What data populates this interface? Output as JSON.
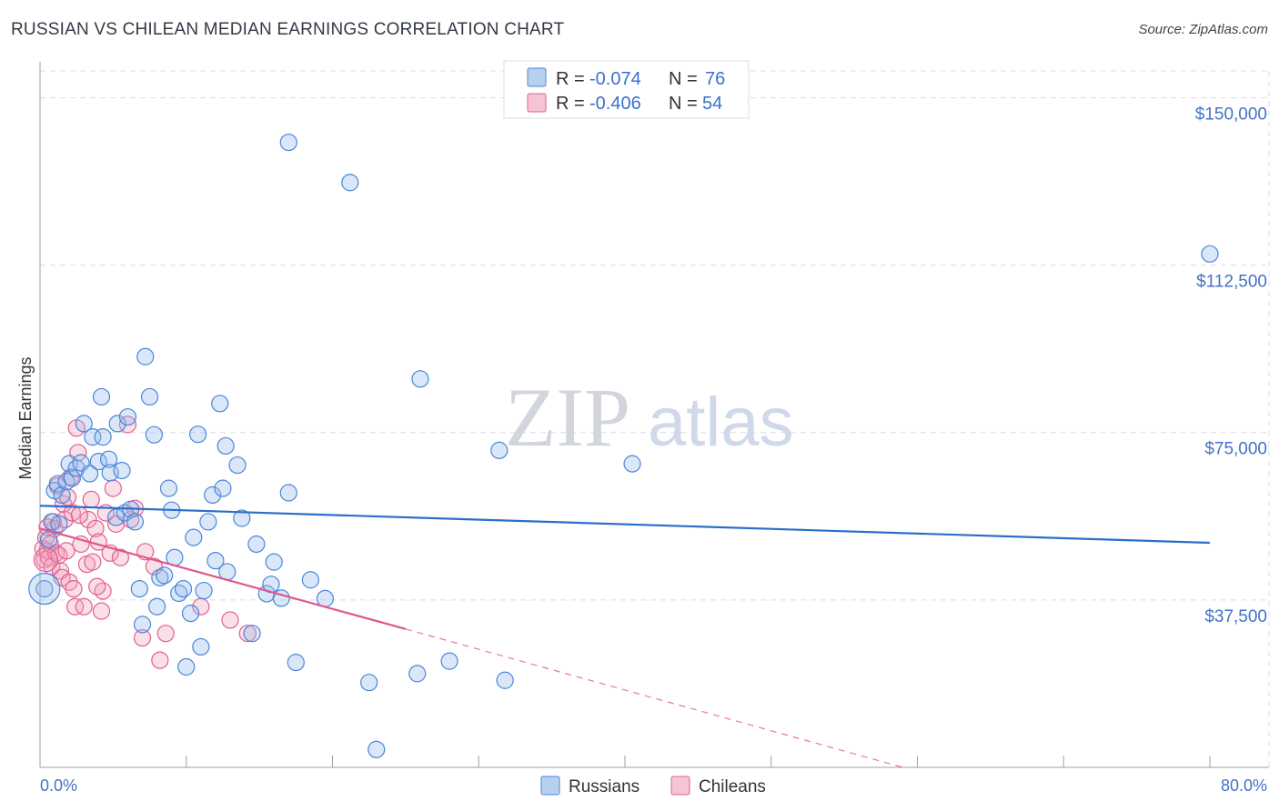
{
  "title": "RUSSIAN VS CHILEAN MEDIAN EARNINGS CORRELATION CHART",
  "source": "Source: ZipAtlas.com",
  "watermark": {
    "zip": "ZIP",
    "atlas": "atlas"
  },
  "colors": {
    "russians": "#4a86d8",
    "russians_fill": "rgba(150,185,235,0.35)",
    "chileans": "#e06090",
    "chileans_fill": "rgba(240,160,190,0.35)",
    "russian_line": "#2a6fc9",
    "chilean_line": "#e0578a",
    "grid": "#d8dce4",
    "tick_text": "#4472c4"
  },
  "legend": {
    "rows": [
      {
        "r_label": "R =",
        "r_value": "-0.074",
        "n_label": "N =",
        "n_value": "76",
        "series": "russians"
      },
      {
        "r_label": "R =",
        "r_value": "-0.406",
        "n_label": "N =",
        "n_value": "54",
        "series": "chileans"
      }
    ]
  },
  "bottom_legend": [
    {
      "label": "Russians",
      "series": "russians"
    },
    {
      "label": "Chileans",
      "series": "chileans"
    }
  ],
  "chart_data": {
    "type": "scatter",
    "title": "RUSSIAN VS CHILEAN MEDIAN EARNINGS CORRELATION CHART",
    "xlabel": "",
    "ylabel": "Median Earnings",
    "xlim": [
      0,
      80
    ],
    "ylim": [
      0,
      156000
    ],
    "x_tick_labels": [
      "0.0%",
      "80.0%"
    ],
    "y_ticks": [
      37500,
      75000,
      112500,
      150000
    ],
    "y_tick_labels": [
      "$37,500",
      "$75,000",
      "$112,500",
      "$150,000"
    ],
    "grid": true,
    "series": [
      {
        "name": "Russians",
        "r": -0.074,
        "n": 76,
        "trend": {
          "x0": 0,
          "y0": 58600,
          "x1": 80,
          "y1": 50300
        },
        "points": [
          [
            0.3,
            40000
          ],
          [
            0.6,
            51000
          ],
          [
            0.8,
            55000
          ],
          [
            1.0,
            62000
          ],
          [
            1.2,
            63500
          ],
          [
            1.3,
            54500
          ],
          [
            1.5,
            61000
          ],
          [
            1.8,
            64000
          ],
          [
            2.0,
            68000
          ],
          [
            2.2,
            64800
          ],
          [
            2.5,
            67000
          ],
          [
            2.8,
            68200
          ],
          [
            3.0,
            77000
          ],
          [
            3.4,
            65800
          ],
          [
            3.6,
            74000
          ],
          [
            4.0,
            68500
          ],
          [
            4.2,
            83000
          ],
          [
            4.3,
            74000
          ],
          [
            4.7,
            69000
          ],
          [
            4.8,
            66000
          ],
          [
            5.2,
            56000
          ],
          [
            5.3,
            77000
          ],
          [
            5.6,
            66500
          ],
          [
            5.8,
            57000
          ],
          [
            6.0,
            78500
          ],
          [
            6.2,
            57800
          ],
          [
            6.5,
            55000
          ],
          [
            6.8,
            40000
          ],
          [
            7.0,
            32000
          ],
          [
            7.2,
            92000
          ],
          [
            7.5,
            83000
          ],
          [
            7.8,
            74500
          ],
          [
            8.0,
            36000
          ],
          [
            8.2,
            42500
          ],
          [
            8.5,
            43000
          ],
          [
            8.8,
            62500
          ],
          [
            9.0,
            57600
          ],
          [
            9.2,
            47000
          ],
          [
            9.5,
            39000
          ],
          [
            9.8,
            40000
          ],
          [
            10.0,
            22500
          ],
          [
            10.3,
            34500
          ],
          [
            10.5,
            51500
          ],
          [
            10.8,
            74600
          ],
          [
            11.0,
            27000
          ],
          [
            11.2,
            39600
          ],
          [
            11.5,
            55000
          ],
          [
            11.8,
            61000
          ],
          [
            12.0,
            46300
          ],
          [
            12.3,
            81500
          ],
          [
            12.5,
            62500
          ],
          [
            12.7,
            72000
          ],
          [
            12.8,
            43800
          ],
          [
            13.5,
            67700
          ],
          [
            13.8,
            55800
          ],
          [
            14.5,
            30000
          ],
          [
            14.8,
            50000
          ],
          [
            15.5,
            38900
          ],
          [
            15.8,
            41000
          ],
          [
            16.0,
            46000
          ],
          [
            16.5,
            37900
          ],
          [
            17.0,
            61500
          ],
          [
            17.5,
            23500
          ],
          [
            18.5,
            42000
          ],
          [
            19.5,
            37800
          ],
          [
            21.2,
            131000
          ],
          [
            17.0,
            140000
          ],
          [
            22.5,
            19000
          ],
          [
            23.0,
            4000
          ],
          [
            25.8,
            21000
          ],
          [
            26.0,
            87000
          ],
          [
            28.0,
            23800
          ],
          [
            31.4,
            71000
          ],
          [
            31.8,
            19500
          ],
          [
            40.5,
            68000
          ],
          [
            80.0,
            115000
          ]
        ]
      },
      {
        "name": "Chileans",
        "r": -0.406,
        "n": 54,
        "trend": {
          "x0": 0,
          "y0": 53500,
          "x1": 25,
          "y1": 31000,
          "dash_x1": 59,
          "dash_y1": 0
        },
        "points": [
          [
            0.2,
            49000
          ],
          [
            0.3,
            46500
          ],
          [
            0.4,
            51500
          ],
          [
            0.5,
            48500
          ],
          [
            0.6,
            47000
          ],
          [
            0.7,
            50000
          ],
          [
            0.8,
            45000
          ],
          [
            0.9,
            55000
          ],
          [
            1.0,
            53500
          ],
          [
            1.1,
            48000
          ],
          [
            1.2,
            63000
          ],
          [
            1.3,
            47500
          ],
          [
            1.4,
            44000
          ],
          [
            1.5,
            42500
          ],
          [
            1.6,
            59000
          ],
          [
            1.7,
            55500
          ],
          [
            1.8,
            48500
          ],
          [
            2.0,
            41500
          ],
          [
            2.1,
            65000
          ],
          [
            2.2,
            57000
          ],
          [
            2.3,
            40000
          ],
          [
            2.4,
            36000
          ],
          [
            2.5,
            76000
          ],
          [
            2.6,
            70500
          ],
          [
            2.8,
            50000
          ],
          [
            3.0,
            36000
          ],
          [
            3.2,
            45500
          ],
          [
            3.3,
            55500
          ],
          [
            3.5,
            60000
          ],
          [
            3.6,
            46000
          ],
          [
            3.8,
            53500
          ],
          [
            4.0,
            50500
          ],
          [
            4.2,
            35000
          ],
          [
            4.3,
            39500
          ],
          [
            4.5,
            57000
          ],
          [
            4.8,
            48000
          ],
          [
            5.0,
            62500
          ],
          [
            5.2,
            54500
          ],
          [
            5.5,
            47000
          ],
          [
            6.0,
            76800
          ],
          [
            6.2,
            55500
          ],
          [
            6.5,
            58000
          ],
          [
            7.0,
            29000
          ],
          [
            7.2,
            48300
          ],
          [
            7.8,
            45000
          ],
          [
            8.2,
            24000
          ],
          [
            8.6,
            30000
          ],
          [
            11.0,
            36000
          ],
          [
            13.0,
            33000
          ],
          [
            14.2,
            30000
          ],
          [
            2.7,
            56500
          ],
          [
            3.9,
            40500
          ],
          [
            1.9,
            60500
          ],
          [
            0.5,
            53800
          ]
        ]
      }
    ]
  }
}
